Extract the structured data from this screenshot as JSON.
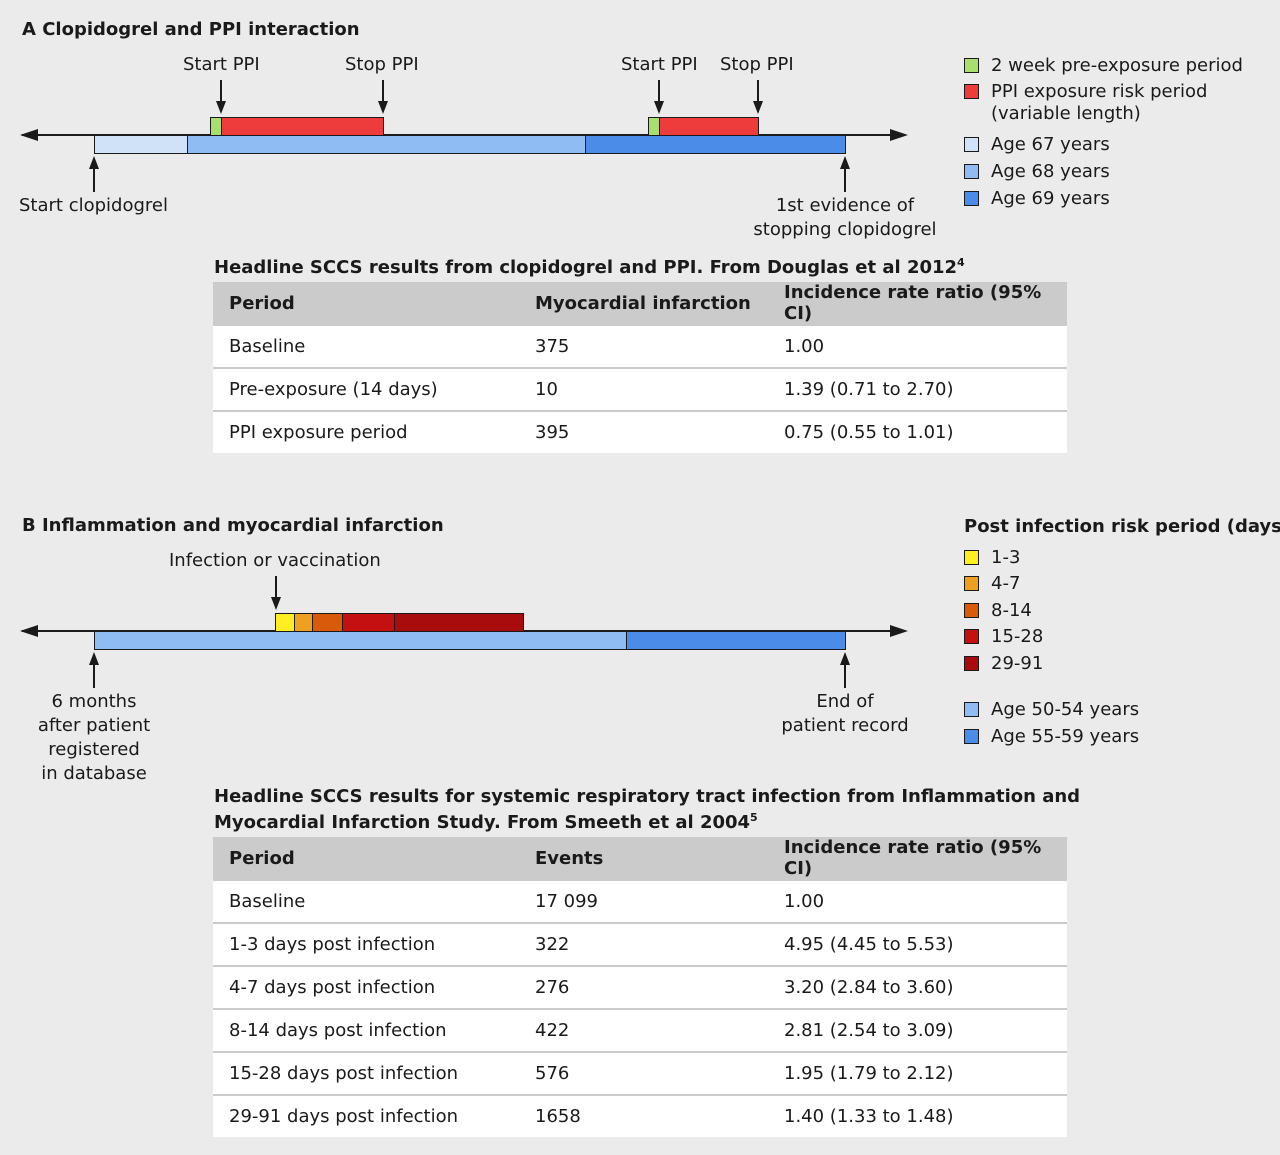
{
  "panel_a": {
    "heading": "A Clopidogrel and PPI interaction",
    "labels": {
      "start_ppi_1": "Start PPI",
      "stop_ppi_1": "Stop PPI",
      "start_ppi_2": "Start PPI",
      "stop_ppi_2": "Stop PPI",
      "start_clopidogrel": "Start clopidogrel",
      "stop_clopidogrel_1": "1st evidence of",
      "stop_clopidogrel_2": "stopping clopidogrel"
    },
    "legend": [
      {
        "label": "2 week pre-exposure period",
        "color": "#a8e070"
      },
      {
        "label": "PPI exposure risk period",
        "label2": "(variable length)",
        "color": "#ee3b3b"
      },
      {
        "label": "Age 67 years",
        "color": "#cfe2f8"
      },
      {
        "label": "Age 68 years",
        "color": "#8fbcf2"
      },
      {
        "label": "Age 69 years",
        "color": "#4a8ce8"
      }
    ],
    "table": {
      "title": "Headline SCCS results from clopidogrel and PPI. From Douglas et al 2012",
      "title_sup": "4",
      "headers": [
        "Period",
        "Myocardial infarction",
        "Incidence rate ratio (95% CI)"
      ],
      "rows": [
        [
          "Baseline",
          "375",
          "1.00"
        ],
        [
          "Pre-exposure (14 days)",
          "10",
          "1.39 (0.71 to 2.70)"
        ],
        [
          "PPI exposure period",
          "395",
          "0.75 (0.55 to 1.01)"
        ]
      ]
    }
  },
  "panel_b": {
    "heading": "B Inflammation and myocardial infarction",
    "labels": {
      "infection": "Infection or vaccination",
      "start_1": "6 months",
      "start_2": "after patient",
      "start_3": "registered",
      "start_4": "in database",
      "end_1": "End of",
      "end_2": "patient record"
    },
    "legend_title": "Post infection risk period (days)",
    "legend": [
      {
        "label": "1-3",
        "color": "#ffee22"
      },
      {
        "label": "4-7",
        "color": "#eea020"
      },
      {
        "label": "8-14",
        "color": "#d85a0a"
      },
      {
        "label": "15-28",
        "color": "#c41010"
      },
      {
        "label": "29-91",
        "color": "#a80c0c"
      },
      {
        "label": "Age 50-54 years",
        "color": "#8fbcf2"
      },
      {
        "label": "Age 55-59 years",
        "color": "#4a8ce8"
      }
    ],
    "table": {
      "title_line1": "Headline SCCS results for systemic respiratory tract infection from Inflammation and",
      "title_line2": "Myocardial Infarction Study. From Smeeth et al 2004",
      "title_sup": "5",
      "headers": [
        "Period",
        "Events",
        "Incidence rate ratio (95% CI)"
      ],
      "rows": [
        [
          "Baseline",
          "17 099",
          "1.00"
        ],
        [
          "1-3 days post infection",
          "322",
          "4.95 (4.45 to 5.53)"
        ],
        [
          "4-7 days post infection",
          "276",
          "3.20 (2.84 to 3.60)"
        ],
        [
          "8-14 days post infection",
          "422",
          "2.81 (2.54 to 3.09)"
        ],
        [
          "15-28 days post infection",
          "576",
          "1.95 (1.79 to 2.12)"
        ],
        [
          "29-91 days post infection",
          "1658",
          "1.40 (1.33 to 1.48)"
        ]
      ]
    }
  }
}
